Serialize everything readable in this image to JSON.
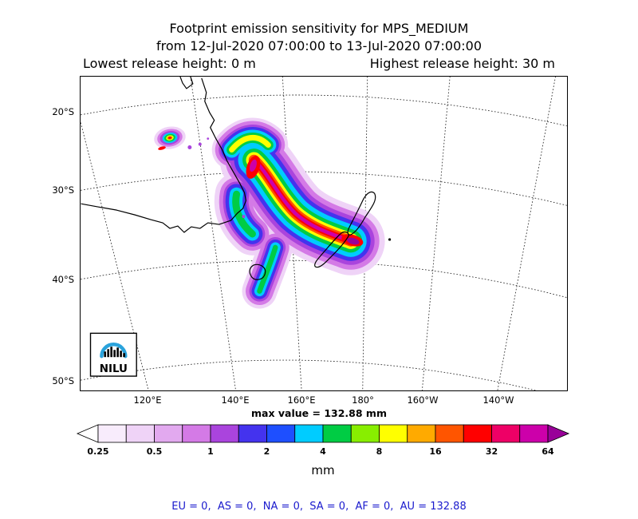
{
  "title": {
    "line1": "Footprint emission sensitivity for MPS_MEDIUM",
    "line2": "from 12-Jul-2020 07:00:00 to 13-Jul-2020 07:00:00",
    "lowest_release": "Lowest release height: 0 m",
    "highest_release": "Highest release height: 30 m"
  },
  "map": {
    "lat_tick_labels": [
      "20°S",
      "30°S",
      "40°S",
      "50°S"
    ],
    "lon_tick_labels": [
      "120°E",
      "140°E",
      "160°E",
      "180°",
      "160°W",
      "140°W"
    ],
    "logo": {
      "text": "NILU",
      "arc_color": "#2aa3dc"
    }
  },
  "colorbar": {
    "max_value_label": "max value = 132.88 mm",
    "units_label": "mm",
    "tick_labels": [
      "0.25",
      "0.5",
      "1",
      "2",
      "4",
      "8",
      "16",
      "32",
      "64"
    ],
    "left_arrow_color": "#ffffff",
    "right_arrow_color": "#990099",
    "segment_colors": [
      "#f8ecfc",
      "#efd3f7",
      "#e2a9ef",
      "#d47ae6",
      "#aa44dd",
      "#4433ee",
      "#1e4fff",
      "#00ccff",
      "#00cc44",
      "#88ee00",
      "#ffff00",
      "#ffaa00",
      "#ff5500",
      "#ff0000",
      "#ee0066",
      "#cc00aa"
    ]
  },
  "footer": {
    "region_totals_text": "EU = 0,  AS = 0,  NA = 0,  SA = 0,  AF = 0,  AU = 132.88",
    "text_color": "#1a1acd"
  },
  "chart_data": {
    "type": "heatmap",
    "title": "Footprint emission sensitivity for MPS_MEDIUM",
    "time_range": {
      "from": "12-Jul-2020 07:00:00",
      "to": "13-Jul-2020 07:00:00"
    },
    "release_height_m": {
      "lowest": 0,
      "highest": 30
    },
    "units": "mm",
    "scale": "log2",
    "colorbar_tick_values": [
      0.25,
      0.5,
      1,
      2,
      4,
      8,
      16,
      32,
      64
    ],
    "max_value_mm": 132.88,
    "region_totals": {
      "EU": 0,
      "AS": 0,
      "NA": 0,
      "SA": 0,
      "AF": 0,
      "AU": 132.88
    },
    "lat_ticks_deg_south": [
      20,
      30,
      40,
      50
    ],
    "lon_ticks": [
      "120°E",
      "140°E",
      "160°E",
      "180°",
      "160°W",
      "140°W"
    ],
    "extent_note": "Footprint sensitivity plume over eastern Australia extending southeast across the Tasman Sea to New Zealand; maximum values near New Zealand"
  }
}
